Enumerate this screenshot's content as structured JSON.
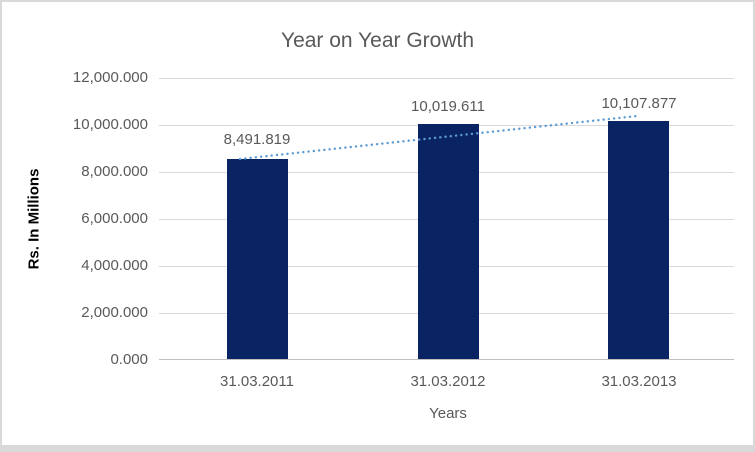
{
  "chart_data": {
    "type": "bar",
    "title": "Year on Year Growth",
    "xlabel": "Years",
    "ylabel": "Rs. In Millions",
    "categories": [
      "31.03.2011",
      "31.03.2012",
      "31.03.2013"
    ],
    "values": [
      8491.819,
      10019.611,
      10107.877
    ],
    "data_labels": [
      "8,491.819",
      "10,019.611",
      "10,107.877"
    ],
    "ylim": [
      0,
      12000
    ],
    "ytick_step": 2000,
    "ytick_labels": [
      "12,000.000",
      "10,000.000",
      "8,000.000",
      "6,000.000",
      "4,000.000",
      "2,000.000",
      "0.000"
    ],
    "grid": true,
    "legend": "none",
    "trendline": {
      "present": true,
      "style": "dotted",
      "series": "linear trend of values"
    },
    "colors": {
      "bar": "#0A2463",
      "trendline": "#5B9BD5",
      "text": "#595959",
      "axis_title_text": "#000000",
      "gridline": "#D9D9D9",
      "axis_line": "#BFBFBF",
      "background": "#FFFFFF",
      "border": "#D9D9D9"
    }
  }
}
